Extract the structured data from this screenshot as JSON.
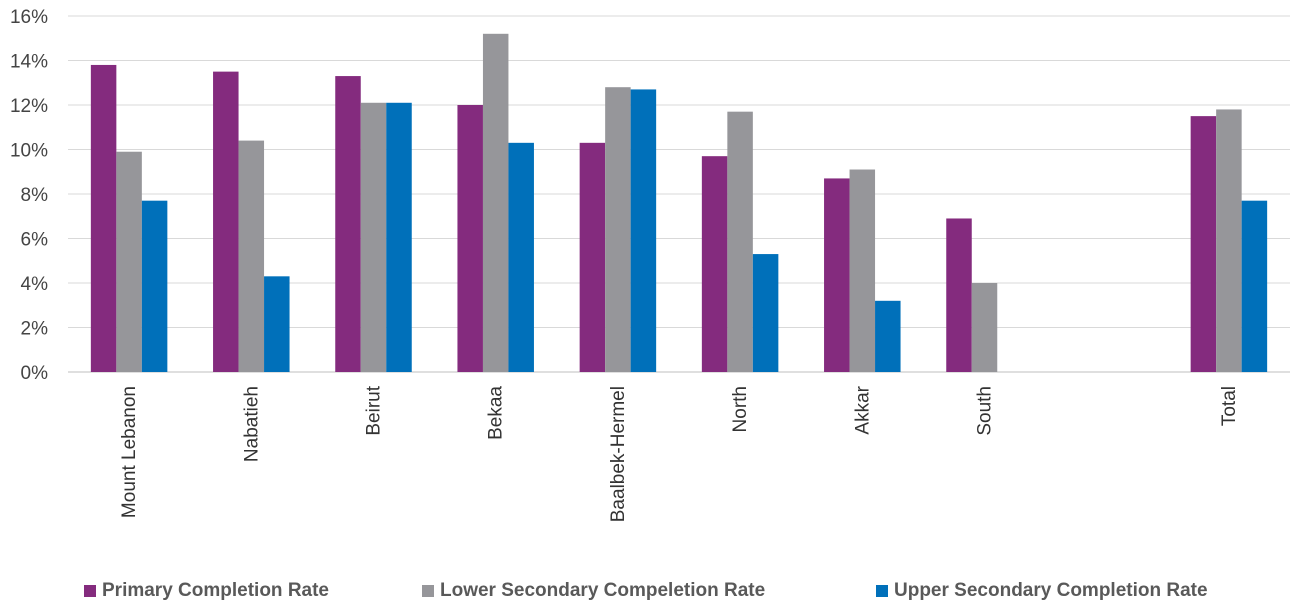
{
  "chart_data": {
    "type": "bar",
    "categories": [
      "Mount Lebanon",
      "Nabatieh",
      "Beirut",
      "Bekaa",
      "Baalbek-Hermel",
      "North",
      "Akkar",
      "South",
      "",
      "Total"
    ],
    "series": [
      {
        "name": "Primary Completion Rate",
        "color": "#842b7e",
        "values": [
          13.8,
          13.5,
          13.3,
          12.0,
          10.3,
          9.7,
          8.7,
          6.9,
          null,
          11.5
        ]
      },
      {
        "name": "Lower Secondary Compeletion Rate",
        "color": "#96969a",
        "values": [
          9.9,
          10.4,
          12.1,
          15.2,
          12.8,
          11.7,
          9.1,
          4.0,
          null,
          11.8
        ]
      },
      {
        "name": "Upper Secondary Completion Rate",
        "color": "#0070ba",
        "values": [
          7.7,
          4.3,
          12.1,
          10.3,
          12.7,
          5.3,
          3.2,
          null,
          null,
          7.7
        ]
      }
    ],
    "yticks": [
      "0%",
      "2%",
      "4%",
      "6%",
      "8%",
      "10%",
      "12%",
      "14%",
      "16%"
    ],
    "ylim": [
      0,
      16
    ],
    "grid": true,
    "legend_position": "bottom",
    "title": "",
    "xlabel": "",
    "ylabel": ""
  }
}
